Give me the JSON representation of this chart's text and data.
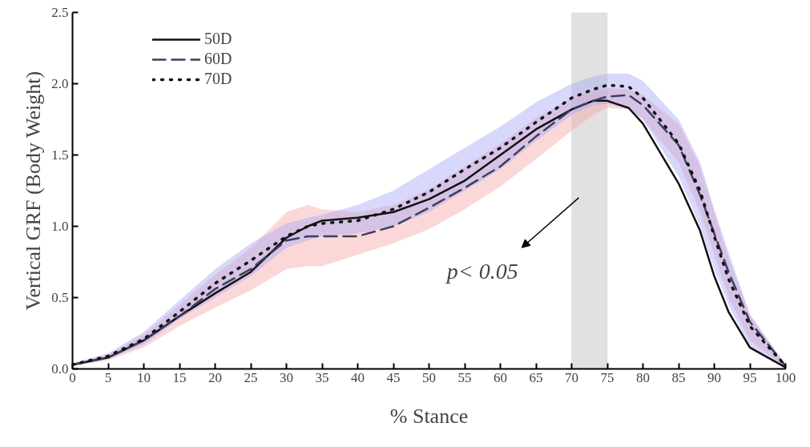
{
  "chart_data": {
    "type": "line",
    "xlabel": "% Stance",
    "ylabel": "Vertical GRF (Body Weight)",
    "x": [
      0,
      5,
      10,
      15,
      20,
      25,
      30,
      33,
      35,
      40,
      45,
      50,
      55,
      60,
      65,
      70,
      73,
      75,
      78,
      80,
      85,
      88,
      90,
      92,
      95,
      100
    ],
    "series": [
      {
        "name": "50D",
        "color": "#111111",
        "line_style": "solid",
        "values": [
          0.03,
          0.08,
          0.2,
          0.37,
          0.53,
          0.68,
          0.92,
          1.0,
          1.04,
          1.06,
          1.1,
          1.19,
          1.32,
          1.5,
          1.68,
          1.82,
          1.88,
          1.88,
          1.83,
          1.72,
          1.3,
          0.97,
          0.65,
          0.4,
          0.15,
          0.01
        ],
        "lower": [
          0.02,
          0.06,
          0.15,
          0.3,
          0.43,
          0.55,
          0.7,
          0.72,
          0.72,
          0.8,
          0.88,
          0.98,
          1.12,
          1.28,
          1.47,
          1.67,
          1.78,
          1.83,
          1.82,
          1.75,
          1.45,
          1.1,
          0.8,
          0.5,
          0.2,
          0.01
        ],
        "upper": [
          0.04,
          0.1,
          0.24,
          0.45,
          0.66,
          0.85,
          1.1,
          1.15,
          1.12,
          1.1,
          1.15,
          1.26,
          1.42,
          1.58,
          1.76,
          1.9,
          1.95,
          1.97,
          1.96,
          1.92,
          1.72,
          1.42,
          1.1,
          0.78,
          0.38,
          0.03
        ]
      },
      {
        "name": "60D",
        "color": "#3a3f5c",
        "line_style": "dashed",
        "values": [
          0.03,
          0.08,
          0.2,
          0.37,
          0.56,
          0.7,
          0.9,
          0.93,
          0.93,
          0.93,
          1.0,
          1.13,
          1.27,
          1.42,
          1.63,
          1.82,
          1.88,
          1.91,
          1.92,
          1.85,
          1.57,
          1.22,
          0.95,
          0.68,
          0.33,
          0.02
        ]
      },
      {
        "name": "70D",
        "color": "#111111",
        "line_style": "dotted",
        "values": [
          0.03,
          0.09,
          0.21,
          0.4,
          0.6,
          0.76,
          0.93,
          1.0,
          1.02,
          1.04,
          1.12,
          1.24,
          1.4,
          1.55,
          1.73,
          1.9,
          1.96,
          1.99,
          1.98,
          1.9,
          1.58,
          1.25,
          0.93,
          0.63,
          0.3,
          0.02
        ],
        "lower": [
          0.02,
          0.07,
          0.17,
          0.35,
          0.5,
          0.65,
          0.85,
          0.9,
          0.93,
          0.95,
          1.0,
          1.1,
          1.25,
          1.4,
          1.6,
          1.78,
          1.85,
          1.86,
          1.82,
          1.75,
          1.35,
          1.0,
          0.7,
          0.45,
          0.15,
          0.01
        ],
        "upper": [
          0.04,
          0.11,
          0.26,
          0.48,
          0.7,
          0.88,
          1.02,
          1.06,
          1.08,
          1.15,
          1.25,
          1.4,
          1.55,
          1.7,
          1.87,
          2.0,
          2.05,
          2.07,
          2.07,
          2.02,
          1.75,
          1.45,
          1.12,
          0.82,
          0.38,
          0.03
        ]
      }
    ],
    "xlim": [
      0,
      100
    ],
    "xticks": [
      0,
      5,
      10,
      15,
      20,
      25,
      30,
      35,
      40,
      45,
      50,
      55,
      60,
      65,
      70,
      75,
      80,
      85,
      90,
      95,
      100
    ],
    "ylim": [
      0,
      2.5
    ],
    "yticks": [
      {
        "value": 0,
        "label": "0.0"
      },
      {
        "value": 0.5,
        "label": "0.5"
      },
      {
        "value": 1,
        "label": "1.0"
      },
      {
        "value": 1.5,
        "label": "1.5"
      },
      {
        "value": 2,
        "label": "2.0"
      },
      {
        "value": 2.5,
        "label": "2.5"
      }
    ],
    "bands": [
      {
        "axis": "x",
        "from": 70,
        "to": 75,
        "label": "p< 0.05",
        "color": "#d9d9d9"
      }
    ],
    "grid": false,
    "legend": "top left"
  }
}
